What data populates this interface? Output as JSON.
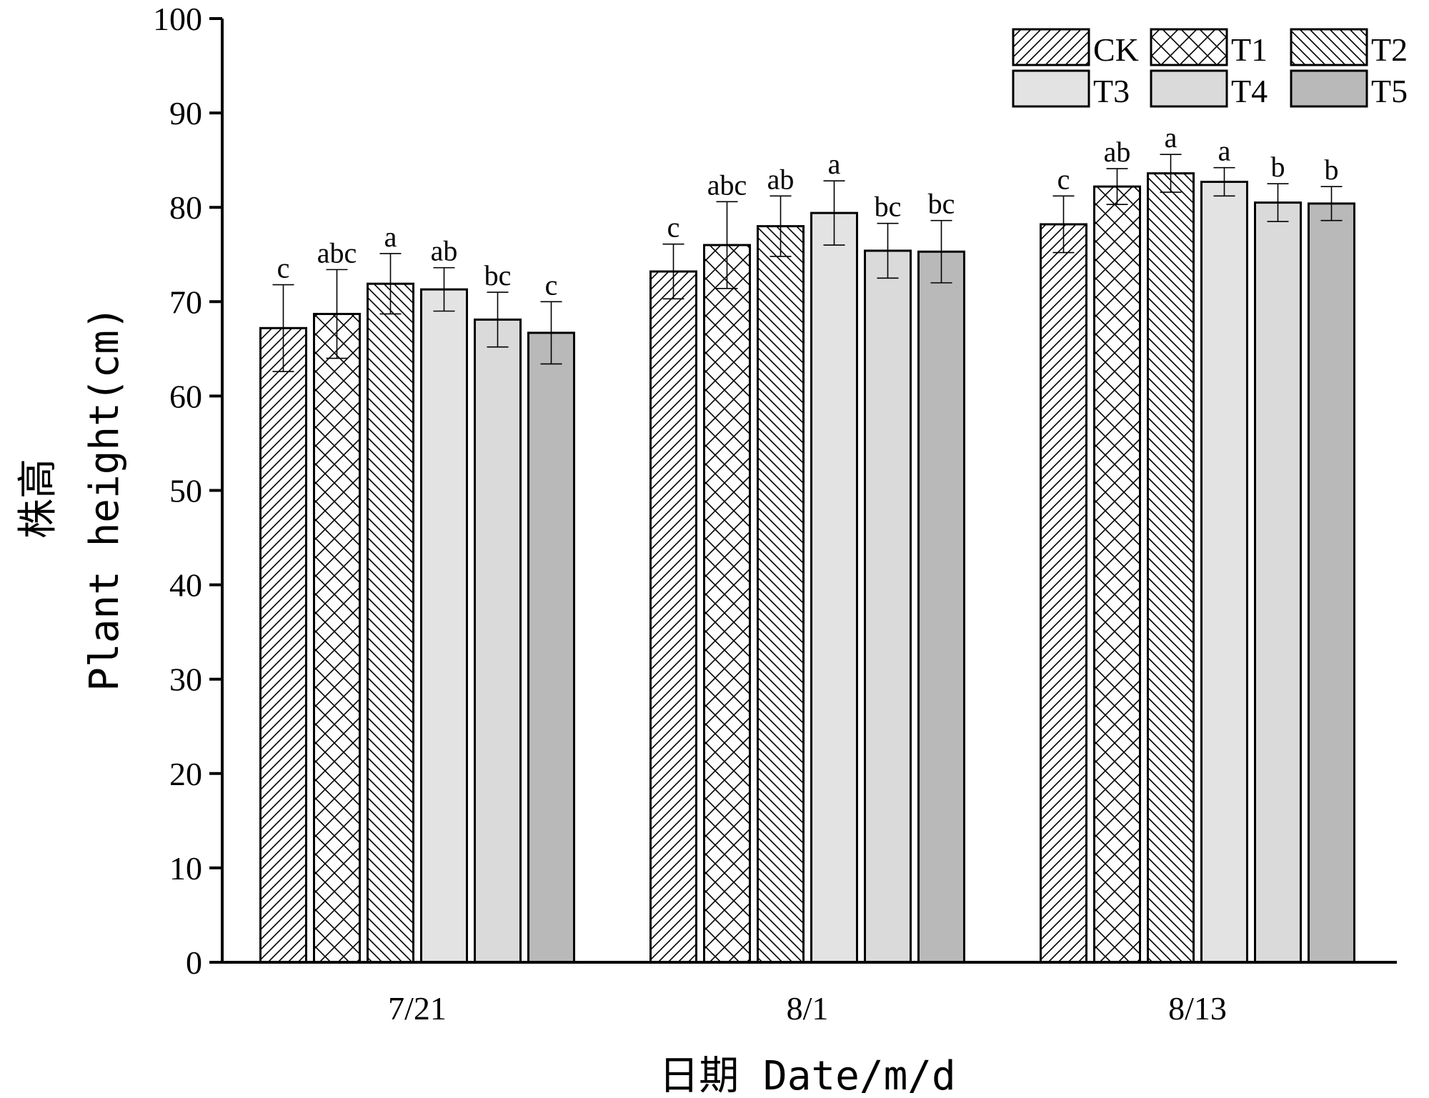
{
  "chart_data": {
    "type": "bar",
    "title": "",
    "ylabel_zh": "株高",
    "ylabel_en": "Plant height(cm)",
    "xlabel": "日期 Date/m/d",
    "ylim": [
      0,
      100
    ],
    "yticks": [
      0,
      10,
      20,
      30,
      40,
      50,
      60,
      70,
      80,
      90,
      100
    ],
    "categories": [
      "7/21",
      "8/1",
      "8/13"
    ],
    "legend_position": "top-right",
    "grid": false,
    "series": [
      {
        "name": "CK",
        "pattern": "hatch-forward",
        "fill": "#ffffff",
        "values": [
          67.2,
          73.2,
          78.2
        ],
        "errors": [
          4.6,
          2.9,
          3.0
        ],
        "labels": [
          "c",
          "c",
          "c"
        ]
      },
      {
        "name": "T1",
        "pattern": "crosshatch",
        "fill": "#ffffff",
        "values": [
          68.7,
          76.0,
          82.2
        ],
        "errors": [
          4.7,
          4.6,
          1.9
        ],
        "labels": [
          "abc",
          "abc",
          "ab"
        ]
      },
      {
        "name": "T2",
        "pattern": "hatch-back",
        "fill": "#ffffff",
        "values": [
          71.9,
          78.0,
          83.6
        ],
        "errors": [
          3.2,
          3.2,
          2.0
        ],
        "labels": [
          "a",
          "ab",
          "a"
        ]
      },
      {
        "name": "T3",
        "pattern": "solid",
        "fill": "#e3e3e3",
        "values": [
          71.3,
          79.4,
          82.7
        ],
        "errors": [
          2.3,
          3.4,
          1.5
        ],
        "labels": [
          "ab",
          "a",
          "a"
        ]
      },
      {
        "name": "T4",
        "pattern": "solid",
        "fill": "#dadada",
        "values": [
          68.1,
          75.4,
          80.5
        ],
        "errors": [
          2.9,
          2.9,
          2.0
        ],
        "labels": [
          "bc",
          "bc",
          "b"
        ]
      },
      {
        "name": "T5",
        "pattern": "solid",
        "fill": "#b9b9b9",
        "values": [
          66.7,
          75.3,
          80.4
        ],
        "errors": [
          3.3,
          3.3,
          1.8
        ],
        "labels": [
          "c",
          "bc",
          "b"
        ]
      }
    ]
  }
}
